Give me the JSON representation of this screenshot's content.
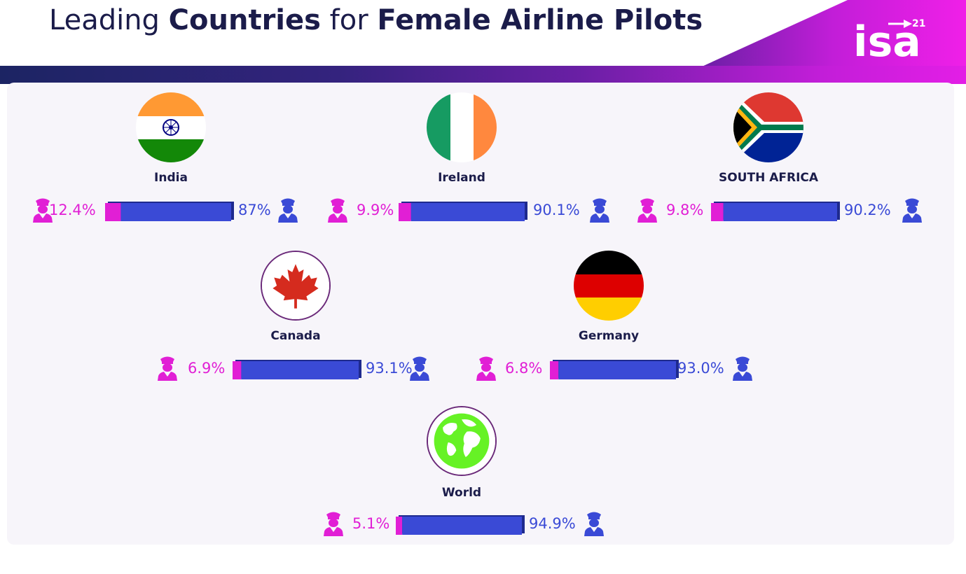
{
  "title": {
    "prefix": "Leading ",
    "word1": "Countries",
    "middle": " for ",
    "word2": "Female Airline Pilots"
  },
  "logo": {
    "text": "isa",
    "sup": "21"
  },
  "colors": {
    "female": "#e11fd5",
    "male": "#3a4ad6",
    "title": "#1b1c4a"
  },
  "icons": {
    "female": "female-pilot-icon",
    "male": "male-pilot-icon"
  },
  "chart_data": {
    "type": "bar",
    "stacked": true,
    "categories": [
      "India",
      "Ireland",
      "SOUTH AFRICA",
      "Canada",
      "Germany",
      "World"
    ],
    "series": [
      {
        "values": [
          12.4,
          9.9,
          9.8,
          6.9,
          6.8,
          5.1
        ]
      },
      {
        "values": [
          87,
          90.1,
          90.2,
          93.1,
          93.0,
          94.9
        ]
      }
    ],
    "labels": [
      {
        "female": "12.4%",
        "male": "87%"
      },
      {
        "female": "9.9%",
        "male": "90.1%"
      },
      {
        "female": "9.8%",
        "male": "90.2%"
      },
      {
        "female": "6.9%",
        "male": "93.1%"
      },
      {
        "female": "6.8%",
        "male": "93.0%"
      },
      {
        "female": "5.1%",
        "male": "94.9%"
      }
    ],
    "flags": [
      "india-flag",
      "ireland-flag",
      "south-africa-flag",
      "canada-flag",
      "germany-flag",
      "world-globe"
    ]
  }
}
